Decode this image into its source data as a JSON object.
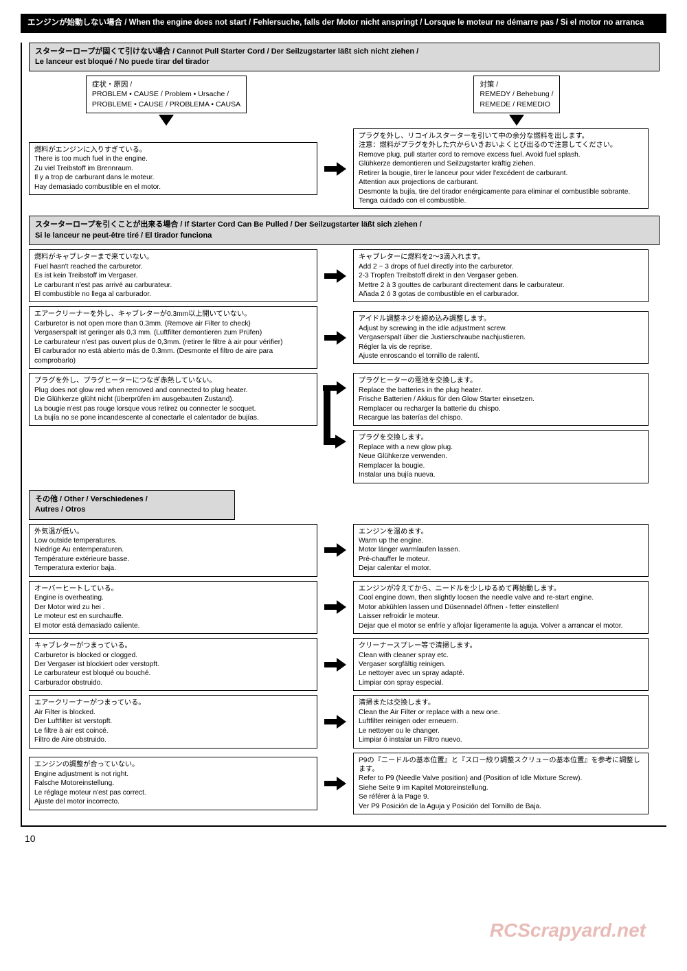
{
  "pageNumber": "10",
  "watermark": "RCScrapyard.net",
  "titleBar": "エンジンが始動しない場合 / When the engine does not start / Fehlersuche, falls der Motor nicht anspringt / Lorsque le moteur ne démarre pas / Si el motor no arranca",
  "labels": {
    "problem": "症状・原因 /\nPROBLEM • CAUSE / Problem • Ursache /\nPROBLEME • CAUSE / PROBLEMA • CAUSA",
    "remedy": "対策 /\nREMEDY / Behebung /\nREMEDE / REMEDIO"
  },
  "sections": [
    {
      "header": "スターターロープが固くて引けない場合 / Cannot Pull Starter Cord / Der Seilzugstarter läßt sich nicht ziehen /\nLe lanceur est bloqué / No puede tirar del tirador",
      "showColumnLabels": true,
      "rows": [
        {
          "problem": "燃料がエンジンに入りすぎている。\nThere is too much fuel in the engine.\nZu viel Treibstoff im Brennraum.\nIl y a trop de carburant dans le moteur.\nHay demasiado combustible en el motor.",
          "remedy": "プラグを外し、リコイルスターターを引いて中の余分な燃料を出します。\n注意：燃料がプラグを外した穴からいきおいよくとび出るので注意してください。\nRemove plug, pull starter cord to remove excess fuel. Avoid fuel splash.\nGlühkerze demontieren und Seilzugstarter kräftig ziehen.\nRetirer la bougie, tirer le lanceur pour vider l'excédent de carburant.\nAttention aux projections de carburant.\nDesmonte la bujía, tire del tirador enérgicamente para eliminar el combustible sobrante. Tenga cuidado con el combustible."
        }
      ]
    },
    {
      "header": "スターターロープを引くことが出来る場合 / If Starter Cord Can Be Pulled / Der Seilzugstarter läßt sich ziehen /\nSi le lanceur ne peut-être tiré / El tirador funciona",
      "showColumnLabels": false,
      "rows": [
        {
          "problem": "燃料がキャブレターまで来ていない。\nFuel hasn't reached the carburetor.\nEs ist kein Treibstoff im Vergaser.\nLe carburant n'est pas arrivé au carburateur.\nEl combustible no llega al carburador.",
          "remedy": "キャブレターに燃料を2～3滴入れます。\nAdd 2 ~ 3 drops of fuel directly into the carburetor.\n2-3 Tropfen Treibstoff direkt in den Vergaser geben.\nMettre 2 à 3 gouttes de carburant directement dans le carburateur.\nAñada 2 ó 3 gotas de combustible en el carburador."
        },
        {
          "problem": "エアークリーナーを外し、キャブレターが0.3mm以上開いていない。\nCarburetor is not open more than 0.3mm. (Remove air Filter to check)\nVergaserspalt ist geringer als 0,3 mm. (Luftfilter demontieren zum Prüfen)\nLe carburateur n'est pas ouvert plus de 0,3mm. (retirer le filtre à air pour vérifier)\nEl carburador no está abierto más de 0.3mm. (Desmonte el filtro de aire para comprobarlo)",
          "remedy": "アイドル調整ネジを締め込み調整します。\nAdjust by screwing in the idle adjustment screw.\nVergaserspalt über die Justierschraube nachjustieren.\nRégler la vis de reprise.\nAjuste enroscando el tornillo de ralentí."
        },
        {
          "problem": "プラグを外し、プラグヒーターにつなぎ赤熱していない。\nPlug does not glow red when removed and connected to plug heater.\nDie Glühkerze glüht nicht (überprüfen im ausgebauten Zustand).\nLa bougie n'est pas rouge lorsque vous retirez ou connecter le socquet.\nLa bujía no se pone incandescente al conectarle el calentador de bujías.",
          "remedySplit": [
            "プラグヒーターの電池を交換します。\nReplace the batteries in the plug heater.\nFrische Batterien / Akkus für den Glow Starter einsetzen.\nRemplacer ou recharger la batterie du chispo.\nRecargue las baterías del chispo.",
            "プラグを交換します。\nReplace with a new glow plug.\nNeue Glühkerze verwenden.\nRemplacer la bougie.\nInstalar una bujía nueva."
          ]
        }
      ]
    },
    {
      "header": "その他 / Other / Verschiedenes /\nAutres / Otros",
      "narrow": true,
      "showColumnLabels": false,
      "rows": [
        {
          "problem": "外気温が低い。\nLow outside temperatures.\nNiedrige Au entemperaturen.\nTempérature extérieure basse.\nTemperatura exterior baja.",
          "remedy": "エンジンを温めます。\nWarm up the engine.\nMotor länger warmlaufen lassen.\nPré-chauffer le moteur.\nDejar calentar el motor."
        },
        {
          "problem": "オーバーヒートしている。\nEngine is overheating.\nDer Motor wird zu hei .\nLe moteur est en surchauffe.\nEl motor está demasiado caliente.",
          "remedy": "エンジンが冷えてから、ニードルを少しゆるめて再始動します。\nCool engine down, then slightly loosen the needle valve and re-start engine.\nMotor abkühlen lassen und Düsennadel öffnen - fetter einstellen!\nLaisser refroidir le moteur.\nDejar que el motor se enfríe y aflojar ligeramente la aguja. Volver a arrancar el motor."
        },
        {
          "problem": "キャブレターがつまっている。\nCarburetor is blocked or clogged.\nDer Vergaser ist blockiert oder verstopft.\nLe carburateur est bloqué ou bouché.\nCarburador obstruido.",
          "remedy": "クリーナースプレー等で清掃します。\nClean with cleaner spray etc.\nVergaser sorgfältig reinigen.\nLe nettoyer avec un spray adapté.\nLimpiar con spray especial."
        },
        {
          "problem": "エアークリーナーがつまっている。\nAir Filter is blocked.\nDer Luftfilter ist verstopft.\nLe filtre à air est coincé.\nFiltro de Aire obstruido.",
          "remedy": "清掃または交換します。\nClean the Air Filter or replace with a new one.\nLuftfilter reinigen oder erneuern.\nLe nettoyer ou le changer.\nLimpiar ó instalar un Filtro nuevo."
        },
        {
          "problem": "エンジンの調整が合っていない。\nEngine adjustment is not right.\nFalsche Motoreinstellung.\nLe réglage moteur n'est pas correct.\nAjuste del motor incorrecto.",
          "remedy": "P9の『ニードルの基本位置』と『スロー絞り調整スクリューの基本位置』を参考に調整します。\nRefer to P9 (Needle Valve position) and (Position of Idle Mixture Screw).\nSiehe Seite 9 im Kapitel Motoreinstellung.\nSe référer à la Page 9.\nVer P9 Posición de la Aguja y Posición del Tornillo de Baja."
        }
      ]
    }
  ]
}
